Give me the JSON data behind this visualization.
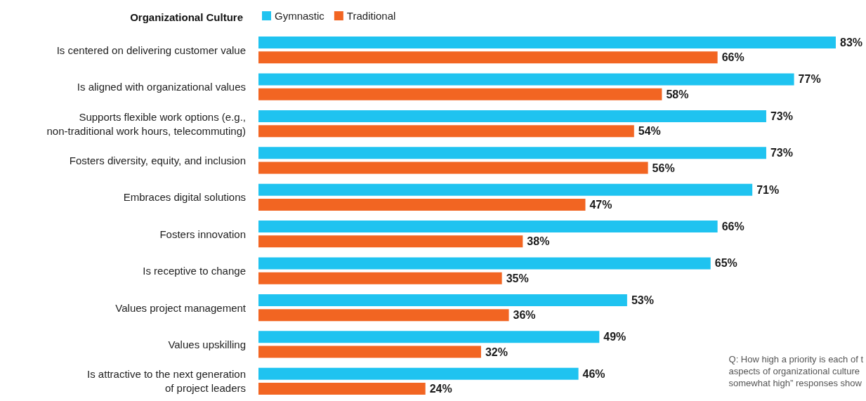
{
  "chart_data": {
    "type": "bar",
    "orientation": "horizontal",
    "title": "Organizational Culture",
    "legend": "top",
    "categories": [
      "Is centered on delivering customer value",
      "Is aligned with organizational values",
      "Supports flexible work options (e.g.,\nnon-traditional work hours, telecommuting)",
      "Fosters diversity, equity, and inclusion",
      "Embraces digital solutions",
      "Fosters innovation",
      "Is receptive to change",
      "Values project management",
      "Values upskilling",
      "Is attractive to the next generation\nof project leaders"
    ],
    "series": [
      {
        "name": "Gymnastic",
        "color": "#1fc3f0",
        "values": [
          83,
          77,
          73,
          73,
          71,
          66,
          65,
          53,
          49,
          46
        ],
        "value_labels": [
          "83%",
          "77%",
          "73%",
          "73%",
          "71%",
          "66%",
          "65%",
          "53%",
          "49%",
          "46%"
        ]
      },
      {
        "name": "Traditional",
        "color": "#f26522",
        "values": [
          66,
          58,
          54,
          56,
          47,
          38,
          35,
          36,
          32,
          24
        ],
        "value_labels": [
          "66%",
          "58%",
          "54%",
          "56%",
          "47%",
          "38%",
          "35%",
          "36%",
          "32%",
          "24%"
        ]
      }
    ],
    "annotations": [
      "Q: How high a priority is each of t\naspects of organizational culture\nsomewhat high” responses show"
    ]
  }
}
